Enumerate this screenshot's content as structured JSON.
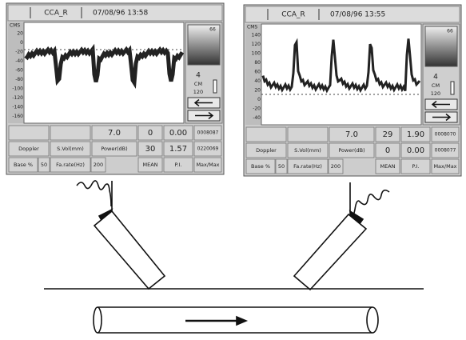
{
  "screens": [
    {
      "label": "CCA_R",
      "timestamp": "07/08/96 13:58",
      "units": "CMS",
      "scale": [
        "20",
        "0",
        "-20",
        "-40",
        "-60",
        "-80",
        "-100",
        "-120",
        "-140",
        "-160"
      ],
      "side": {
        "top": "66",
        "value": "4",
        "unit": "CM",
        "depth": "120"
      },
      "table": {
        "power": "7.0",
        "mean_top": "0",
        "pi_top": "0.00",
        "code_top": "0008087",
        "mode": "Doppler",
        "svol": "S.Vol(mm)",
        "power_label": "Power(dB)",
        "mean_bottom": "30",
        "pi_bottom": "1.57",
        "code_bottom": "0220069",
        "base_label": "Base %",
        "base": "50",
        "rate_label": "Fa.rate(Hz)",
        "rate": "200",
        "mean_label": "MEAN",
        "pi_label": "P.I.",
        "maxmax_label": "Max/Max"
      }
    },
    {
      "label": "CCA_R",
      "timestamp": "07/08/96 13:55",
      "units": "CMS",
      "scale": [
        "140",
        "120",
        "100",
        "80",
        "60",
        "40",
        "20",
        "0",
        "-20",
        "-40"
      ],
      "side": {
        "top": "66",
        "value": "4",
        "unit": "CM",
        "depth": "120"
      },
      "table": {
        "power": "7.0",
        "mean_top": "29",
        "pi_top": "1.90",
        "code_top": "0008070",
        "mode": "Doppler",
        "svol": "S.Vol(mm)",
        "power_label": "Power(dB)",
        "mean_bottom": "0",
        "pi_bottom": "0.00",
        "code_bottom": "0008077",
        "base_label": "Base %",
        "base": "50",
        "rate_label": "Fa.rate(Hz)",
        "rate": "200",
        "mean_label": "MEAN",
        "pi_label": "P.I.",
        "maxmax_label": "Max/Max"
      }
    }
  ]
}
